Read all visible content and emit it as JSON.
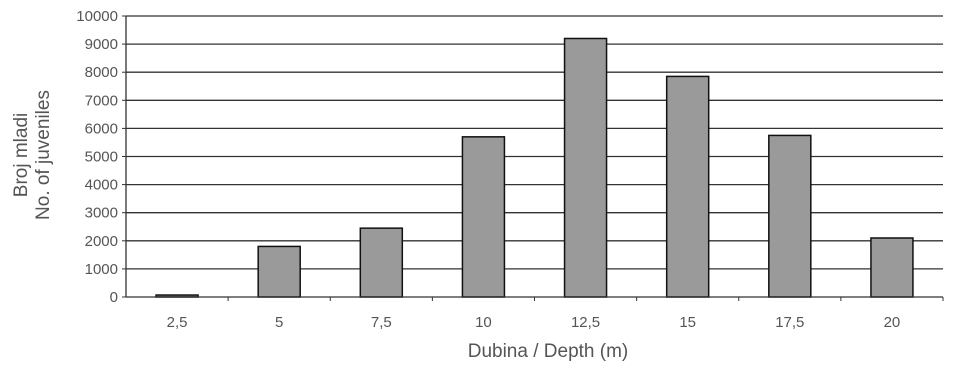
{
  "chart_data": {
    "type": "bar",
    "title": "",
    "xlabel": "Dubina / Depth (m)",
    "ylabel_lines": [
      "Broj mladi",
      "No. of juveniles"
    ],
    "categories": [
      "2,5",
      "5",
      "7,5",
      "10",
      "12,5",
      "15",
      "17,5",
      "20"
    ],
    "series": [
      {
        "values": [
          70,
          1800,
          2450,
          5700,
          9200,
          7850,
          5750,
          2100
        ]
      }
    ],
    "ylim": [
      0,
      10000
    ],
    "yticks": [
      0,
      1000,
      2000,
      3000,
      4000,
      5000,
      6000,
      7000,
      8000,
      9000,
      10000
    ],
    "grid": true,
    "legend": "none",
    "colors": {
      "bar_fill": "#9a9a9a",
      "bar_stroke": "#111111",
      "grid": "#333333",
      "text": "#555555"
    }
  }
}
